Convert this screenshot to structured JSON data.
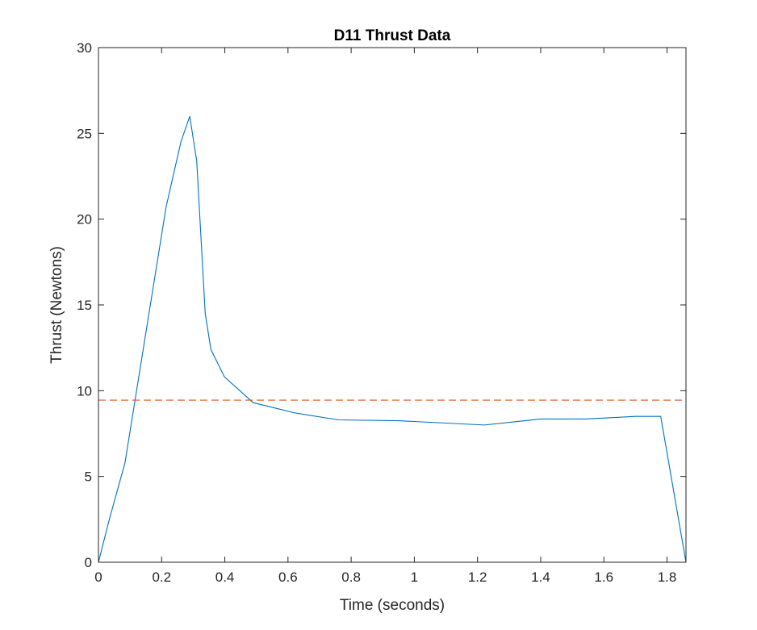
{
  "chart_data": {
    "type": "line",
    "title": "D11 Thrust Data",
    "xlabel": "Time (seconds)",
    "ylabel": "Thrust (Newtons)",
    "xlim": [
      0,
      1.86
    ],
    "ylim": [
      0,
      30
    ],
    "xticks": [
      0,
      0.2,
      0.4,
      0.6,
      0.8,
      1,
      1.2,
      1.4,
      1.6,
      1.8
    ],
    "xtick_labels": [
      "0",
      "0.2",
      "0.4",
      "0.6",
      "0.8",
      "1",
      "1.2",
      "1.4",
      "1.6",
      "1.8"
    ],
    "yticks": [
      0,
      5,
      10,
      15,
      20,
      25,
      30
    ],
    "ytick_labels": [
      "0",
      "5",
      "10",
      "15",
      "20",
      "25",
      "30"
    ],
    "grid": false,
    "series": [
      {
        "color": "#0072BD",
        "style": "solid",
        "x": [
          0,
          0.033,
          0.084,
          0.214,
          0.261,
          0.289,
          0.311,
          0.338,
          0.356,
          0.399,
          0.49,
          0.623,
          0.76,
          0.95,
          1.222,
          1.4,
          1.54,
          1.7,
          1.78,
          1.86
        ],
        "y": [
          0,
          2.4,
          5.8,
          20.7,
          24.5,
          26.0,
          23.4,
          14.5,
          12.4,
          10.8,
          9.3,
          8.7,
          8.3,
          8.25,
          8.0,
          8.35,
          8.35,
          8.5,
          8.5,
          0
        ]
      },
      {
        "color": "#D95319",
        "style": "dashed",
        "x": [
          0,
          1.86
        ],
        "y": [
          9.45,
          9.45
        ]
      }
    ]
  }
}
